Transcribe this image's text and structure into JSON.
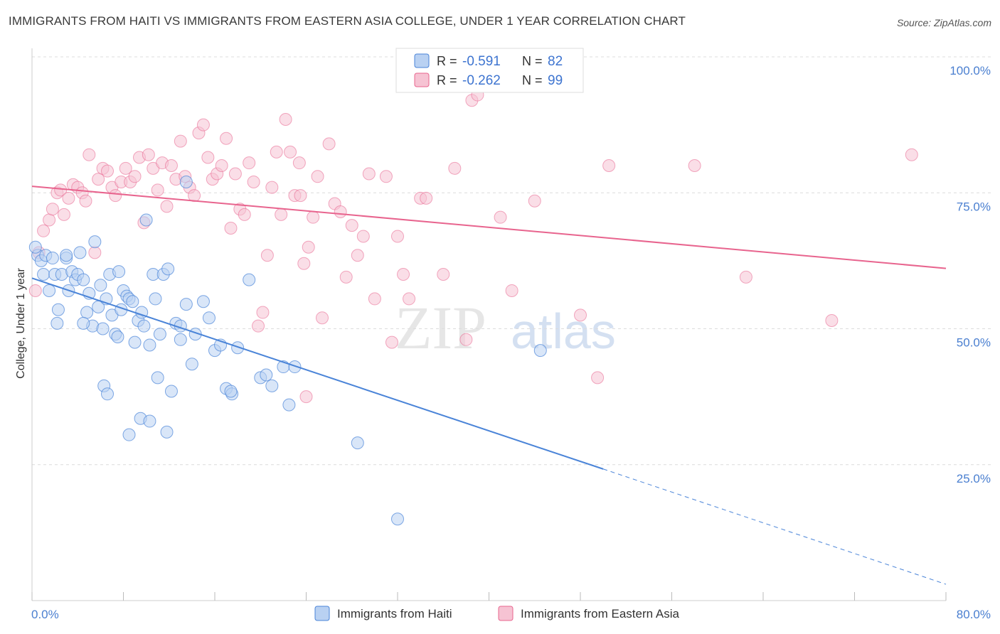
{
  "title": "IMMIGRANTS FROM HAITI VS IMMIGRANTS FROM EASTERN ASIA COLLEGE, UNDER 1 YEAR CORRELATION CHART",
  "source": "Source: ZipAtlas.com",
  "watermark": {
    "zip": "ZIP",
    "atlas": "atlas"
  },
  "colors": {
    "haiti": "#4a84d8",
    "haiti_fill": "#b9d1f2",
    "asia": "#e8648e",
    "asia_fill": "#f6c3d3",
    "tick_text": "#4a7fd0"
  },
  "legend": {
    "rows": [
      {
        "r_label": "R =",
        "r_value": "-0.591",
        "n_label": "N =",
        "n_value": "82"
      },
      {
        "r_label": "R =",
        "r_value": "-0.262",
        "n_label": "N =",
        "n_value": "99"
      }
    ]
  },
  "chart_data": {
    "type": "scatter",
    "title": "IMMIGRANTS FROM HAITI VS IMMIGRANTS FROM EASTERN ASIA COLLEGE, UNDER 1 YEAR CORRELATION CHART",
    "xlabel": "",
    "ylabel": "College, Under 1 year",
    "xlim": [
      0,
      80
    ],
    "ylim": [
      0,
      100
    ],
    "x_tick_labels": [
      "0.0%",
      "80.0%"
    ],
    "y_tick_labels": [
      "100.0%",
      "75.0%",
      "50.0%",
      "25.0%"
    ],
    "y_ticks": [
      100,
      75,
      50,
      25
    ],
    "grid": true,
    "legend_position": "top-center",
    "series": [
      {
        "name": "Immigrants from Haiti",
        "r": -0.591,
        "n": 82,
        "trend": {
          "x0": 0,
          "y0": 59.3,
          "x1": 50,
          "y1": 24.2,
          "dash_to_x": 80,
          "dash_to_y": 3.0
        },
        "points": [
          [
            0.5,
            63.5
          ],
          [
            0.8,
            62.5
          ],
          [
            1.0,
            60
          ],
          [
            1.5,
            57
          ],
          [
            1.2,
            63.5
          ],
          [
            2.0,
            60
          ],
          [
            1.8,
            63
          ],
          [
            2.2,
            51
          ],
          [
            2.3,
            53.5
          ],
          [
            2.6,
            60
          ],
          [
            3.0,
            63
          ],
          [
            3.2,
            57
          ],
          [
            3.0,
            63.5
          ],
          [
            3.5,
            60.5
          ],
          [
            3.8,
            59
          ],
          [
            4.0,
            60
          ],
          [
            4.2,
            64
          ],
          [
            4.5,
            59
          ],
          [
            4.8,
            53
          ],
          [
            5.0,
            56.5
          ],
          [
            5.3,
            50.5
          ],
          [
            5.5,
            66
          ],
          [
            5.8,
            54
          ],
          [
            6.0,
            58
          ],
          [
            6.2,
            50
          ],
          [
            6.5,
            55.5
          ],
          [
            6.8,
            60
          ],
          [
            7.0,
            52.5
          ],
          [
            7.3,
            49
          ],
          [
            7.6,
            60.5
          ],
          [
            7.8,
            53.5
          ],
          [
            8.0,
            57
          ],
          [
            8.3,
            56
          ],
          [
            8.5,
            55.5
          ],
          [
            8.8,
            55
          ],
          [
            9.0,
            47.5
          ],
          [
            9.3,
            51.5
          ],
          [
            9.6,
            53
          ],
          [
            9.8,
            50.5
          ],
          [
            10.0,
            70
          ],
          [
            10.3,
            47
          ],
          [
            10.6,
            60
          ],
          [
            10.8,
            55.5
          ],
          [
            11.2,
            49
          ],
          [
            11.5,
            60
          ],
          [
            11.9,
            61
          ],
          [
            12.2,
            38.5
          ],
          [
            12.6,
            51
          ],
          [
            13.0,
            48
          ],
          [
            13.5,
            54.5
          ],
          [
            14.0,
            43.5
          ],
          [
            15.0,
            55
          ],
          [
            15.5,
            52
          ],
          [
            16.0,
            46
          ],
          [
            16.5,
            47
          ],
          [
            17.0,
            39
          ],
          [
            17.5,
            38
          ],
          [
            18.0,
            46.5
          ],
          [
            19.0,
            59
          ],
          [
            20.0,
            41
          ],
          [
            21.0,
            39.5
          ],
          [
            22.0,
            43
          ],
          [
            22.5,
            36
          ],
          [
            23.0,
            43
          ],
          [
            6.3,
            39.5
          ],
          [
            6.6,
            38
          ],
          [
            9.5,
            33.5
          ],
          [
            10.3,
            33
          ],
          [
            11.8,
            31
          ],
          [
            8.5,
            30.5
          ],
          [
            11.0,
            41
          ],
          [
            7.5,
            48.5
          ],
          [
            14.3,
            49
          ],
          [
            13.0,
            50.5
          ],
          [
            17.4,
            38.5
          ],
          [
            4.5,
            51
          ],
          [
            28.5,
            29
          ],
          [
            32.0,
            15
          ],
          [
            44.5,
            46
          ],
          [
            20.5,
            41.5
          ],
          [
            13.5,
            77
          ],
          [
            0.3,
            65
          ]
        ]
      },
      {
        "name": "Immigrants from Eastern Asia",
        "r": -0.262,
        "n": 99,
        "trend": {
          "x0": 0,
          "y0": 76.2,
          "x1": 80,
          "y1": 61.1
        },
        "points": [
          [
            0.3,
            57
          ],
          [
            0.6,
            64
          ],
          [
            1.0,
            68
          ],
          [
            1.5,
            70
          ],
          [
            1.8,
            72
          ],
          [
            2.2,
            75
          ],
          [
            2.5,
            75.5
          ],
          [
            2.8,
            71
          ],
          [
            3.2,
            74
          ],
          [
            3.6,
            76.5
          ],
          [
            4.0,
            76
          ],
          [
            4.4,
            75
          ],
          [
            4.7,
            73.5
          ],
          [
            5.0,
            82
          ],
          [
            5.5,
            64
          ],
          [
            5.8,
            77.5
          ],
          [
            6.2,
            79.5
          ],
          [
            6.6,
            79
          ],
          [
            7.0,
            76
          ],
          [
            7.3,
            74.5
          ],
          [
            7.8,
            77
          ],
          [
            8.2,
            79.5
          ],
          [
            8.6,
            77
          ],
          [
            9.0,
            78
          ],
          [
            9.4,
            81.5
          ],
          [
            9.8,
            69.5
          ],
          [
            10.2,
            82
          ],
          [
            10.6,
            79.5
          ],
          [
            11.0,
            75.5
          ],
          [
            11.4,
            80.5
          ],
          [
            11.8,
            72.5
          ],
          [
            12.2,
            80
          ],
          [
            12.6,
            77.5
          ],
          [
            13.0,
            84.5
          ],
          [
            13.4,
            78
          ],
          [
            13.8,
            76
          ],
          [
            14.2,
            74.5
          ],
          [
            14.6,
            86
          ],
          [
            15.0,
            87.5
          ],
          [
            15.4,
            81.5
          ],
          [
            15.8,
            77.5
          ],
          [
            16.2,
            78.5
          ],
          [
            16.6,
            80
          ],
          [
            17.0,
            85
          ],
          [
            17.4,
            68.5
          ],
          [
            17.8,
            78.5
          ],
          [
            18.2,
            72
          ],
          [
            18.6,
            71
          ],
          [
            19.0,
            80.5
          ],
          [
            19.4,
            77
          ],
          [
            19.8,
            50.5
          ],
          [
            20.2,
            53
          ],
          [
            20.6,
            63.5
          ],
          [
            21.0,
            76
          ],
          [
            21.4,
            82.5
          ],
          [
            21.8,
            71
          ],
          [
            22.2,
            88.5
          ],
          [
            22.6,
            82.5
          ],
          [
            23.0,
            74.5
          ],
          [
            23.4,
            80.5
          ],
          [
            23.8,
            62
          ],
          [
            24.2,
            65
          ],
          [
            24.6,
            70.5
          ],
          [
            25.0,
            78
          ],
          [
            25.4,
            52
          ],
          [
            26.0,
            84
          ],
          [
            26.5,
            73
          ],
          [
            27.0,
            71.5
          ],
          [
            27.5,
            59.5
          ],
          [
            28.0,
            69
          ],
          [
            28.5,
            63.5
          ],
          [
            29.0,
            67
          ],
          [
            29.5,
            78.5
          ],
          [
            30.0,
            55.5
          ],
          [
            31.0,
            78
          ],
          [
            31.5,
            47.5
          ],
          [
            32.0,
            67
          ],
          [
            32.5,
            60
          ],
          [
            33.0,
            55.5
          ],
          [
            34.0,
            74
          ],
          [
            34.5,
            74
          ],
          [
            36.0,
            60
          ],
          [
            37.0,
            79.5
          ],
          [
            38.0,
            48
          ],
          [
            38.5,
            92
          ],
          [
            39.0,
            93
          ],
          [
            41.0,
            70.5
          ],
          [
            42.0,
            57
          ],
          [
            44.0,
            73.5
          ],
          [
            48.0,
            52.5
          ],
          [
            49.5,
            41
          ],
          [
            50.5,
            80
          ],
          [
            58.0,
            80
          ],
          [
            62.5,
            59.5
          ],
          [
            70.0,
            51.5
          ],
          [
            77.0,
            82
          ],
          [
            23.5,
            74.5
          ],
          [
            37.5,
            97
          ],
          [
            24.0,
            37.5
          ]
        ]
      }
    ]
  },
  "bottom_legend": [
    "Immigrants from Haiti",
    "Immigrants from Eastern Asia"
  ]
}
